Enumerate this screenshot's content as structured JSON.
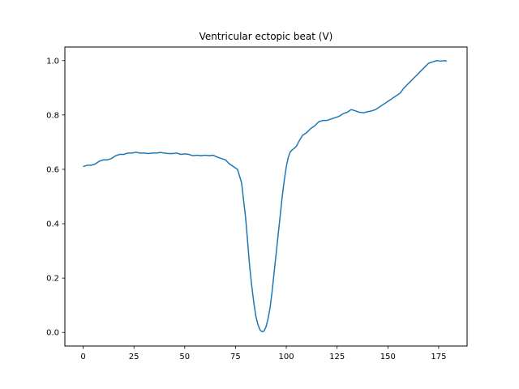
{
  "chart_data": {
    "type": "line",
    "title": "Ventricular ectopic beat (V)",
    "xlabel": "",
    "ylabel": "",
    "xlim": [
      -9,
      189
    ],
    "ylim": [
      -0.05,
      1.05
    ],
    "xticks": [
      0,
      25,
      50,
      75,
      100,
      125,
      150,
      175
    ],
    "yticks": [
      0.0,
      0.2,
      0.4,
      0.6,
      0.8,
      1.0
    ],
    "ytick_labels": [
      "0.0",
      "0.2",
      "0.4",
      "0.6",
      "0.8",
      "1.0"
    ],
    "grid": false,
    "line_color": "#1f77b4",
    "x": [
      0,
      2,
      4,
      6,
      8,
      10,
      12,
      14,
      16,
      18,
      20,
      22,
      24,
      26,
      28,
      30,
      32,
      34,
      36,
      38,
      40,
      42,
      44,
      46,
      48,
      50,
      52,
      54,
      56,
      58,
      60,
      62,
      64,
      66,
      68,
      70,
      72,
      74,
      76,
      78,
      80,
      81,
      82,
      83,
      84,
      85,
      86,
      87,
      88,
      89,
      90,
      91,
      92,
      93,
      94,
      95,
      96,
      97,
      98,
      99,
      100,
      101,
      102,
      103,
      104,
      105,
      106,
      108,
      110,
      112,
      114,
      116,
      118,
      120,
      122,
      124,
      126,
      128,
      130,
      132,
      134,
      136,
      138,
      140,
      142,
      144,
      146,
      148,
      150,
      152,
      154,
      156,
      158,
      160,
      162,
      164,
      166,
      168,
      170,
      172,
      174,
      176,
      178,
      179
    ],
    "values": [
      0.61,
      0.615,
      0.615,
      0.62,
      0.63,
      0.635,
      0.635,
      0.64,
      0.65,
      0.655,
      0.655,
      0.66,
      0.66,
      0.663,
      0.66,
      0.66,
      0.658,
      0.66,
      0.66,
      0.662,
      0.66,
      0.658,
      0.658,
      0.66,
      0.655,
      0.657,
      0.655,
      0.65,
      0.652,
      0.65,
      0.652,
      0.65,
      0.652,
      0.645,
      0.64,
      0.635,
      0.62,
      0.61,
      0.6,
      0.55,
      0.42,
      0.33,
      0.24,
      0.17,
      0.11,
      0.06,
      0.03,
      0.01,
      0.003,
      0.005,
      0.02,
      0.05,
      0.09,
      0.15,
      0.22,
      0.29,
      0.36,
      0.43,
      0.5,
      0.56,
      0.61,
      0.645,
      0.665,
      0.672,
      0.678,
      0.685,
      0.7,
      0.725,
      0.735,
      0.75,
      0.76,
      0.775,
      0.78,
      0.78,
      0.785,
      0.79,
      0.795,
      0.805,
      0.81,
      0.82,
      0.815,
      0.81,
      0.808,
      0.812,
      0.815,
      0.82,
      0.83,
      0.84,
      0.85,
      0.86,
      0.87,
      0.88,
      0.9,
      0.915,
      0.93,
      0.945,
      0.96,
      0.975,
      0.99,
      0.995,
      1.0,
      0.998,
      1.0,
      0.998
    ]
  }
}
